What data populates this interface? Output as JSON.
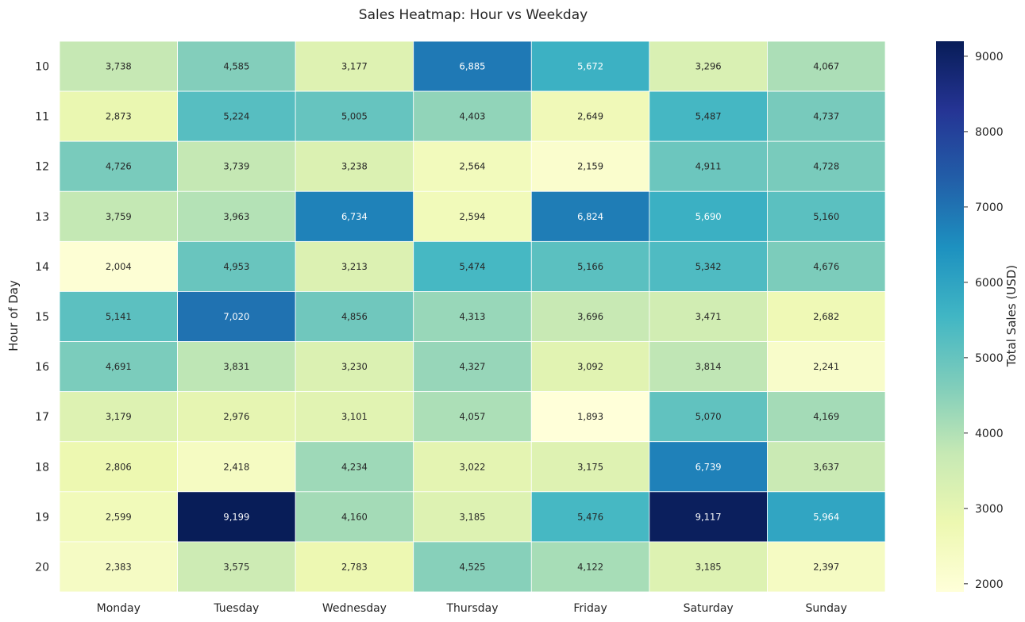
{
  "chart_data": {
    "type": "heatmap",
    "title": "Sales Heatmap: Hour vs Weekday",
    "xlabel": "",
    "ylabel": "Hour of Day",
    "colorbar_label": "Total Sales (USD)",
    "colormap": "YlGnBu",
    "vmin": 1893,
    "vmax": 9199,
    "colorbar_ticks": [
      "2000",
      "3000",
      "4000",
      "5000",
      "6000",
      "7000",
      "8000",
      "9000"
    ],
    "x_categories": [
      "Monday",
      "Tuesday",
      "Wednesday",
      "Thursday",
      "Friday",
      "Saturday",
      "Sunday"
    ],
    "y_categories": [
      "10",
      "11",
      "12",
      "13",
      "14",
      "15",
      "16",
      "17",
      "18",
      "19",
      "20"
    ],
    "values": [
      [
        3738,
        4585,
        3177,
        6885,
        5672,
        3296,
        4067
      ],
      [
        2873,
        5224,
        5005,
        4403,
        2649,
        5487,
        4737
      ],
      [
        4726,
        3739,
        3238,
        2564,
        2159,
        4911,
        4728
      ],
      [
        3759,
        3963,
        6734,
        2594,
        6824,
        5690,
        5160
      ],
      [
        2004,
        4953,
        3213,
        5474,
        5166,
        5342,
        4676
      ],
      [
        5141,
        7020,
        4856,
        4313,
        3696,
        3471,
        2682
      ],
      [
        4691,
        3831,
        3230,
        4327,
        3092,
        3814,
        2241
      ],
      [
        3179,
        2976,
        3101,
        4057,
        1893,
        5070,
        4169
      ],
      [
        2806,
        2418,
        4234,
        3022,
        3175,
        6739,
        3637
      ],
      [
        2599,
        9199,
        4160,
        3185,
        5476,
        9117,
        5964
      ],
      [
        2383,
        3575,
        2783,
        4525,
        4122,
        3185,
        2397
      ]
    ],
    "cell_labels": [
      [
        "3,738",
        "4,585",
        "3,177",
        "6,885",
        "5,672",
        "3,296",
        "4,067"
      ],
      [
        "2,873",
        "5,224",
        "5,005",
        "4,403",
        "2,649",
        "5,487",
        "4,737"
      ],
      [
        "4,726",
        "3,739",
        "3,238",
        "2,564",
        "2,159",
        "4,911",
        "4,728"
      ],
      [
        "3,759",
        "3,963",
        "6,734",
        "2,594",
        "6,824",
        "5,690",
        "5,160"
      ],
      [
        "2,004",
        "4,953",
        "3,213",
        "5,474",
        "5,166",
        "5,342",
        "4,676"
      ],
      [
        "5,141",
        "7,020",
        "4,856",
        "4,313",
        "3,696",
        "3,471",
        "2,682"
      ],
      [
        "4,691",
        "3,831",
        "3,230",
        "4,327",
        "3,092",
        "3,814",
        "2,241"
      ],
      [
        "3,179",
        "2,976",
        "3,101",
        "4,057",
        "1,893",
        "5,070",
        "4,169"
      ],
      [
        "2,806",
        "2,418",
        "4,234",
        "3,022",
        "3,175",
        "6,739",
        "3,637"
      ],
      [
        "2,599",
        "9,199",
        "4,160",
        "3,185",
        "5,476",
        "9,117",
        "5,964"
      ],
      [
        "2,383",
        "3,575",
        "2,783",
        "4,525",
        "4,122",
        "3,185",
        "2,397"
      ]
    ],
    "grid": false,
    "legend": "colorbar-right"
  }
}
